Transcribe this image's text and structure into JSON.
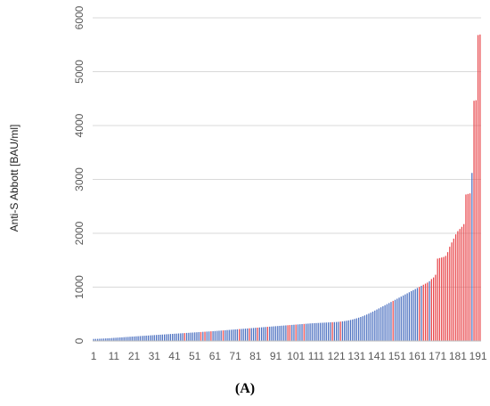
{
  "chart_data": {
    "type": "bar",
    "title": "",
    "xlabel": "",
    "ylabel": "Anti-S Abbott [BAU/ml]",
    "ylim": [
      0,
      6000
    ],
    "yticks": [
      0,
      1000,
      2000,
      3000,
      4000,
      5000,
      6000
    ],
    "xtick_labels": [
      "1",
      "11",
      "21",
      "31",
      "41",
      "51",
      "61",
      "71",
      "81",
      "91",
      "101",
      "111",
      "121",
      "131",
      "141",
      "151",
      "161",
      "171",
      "181",
      "191"
    ],
    "n_bars": 192,
    "grid": true,
    "legend": "none",
    "series_colors": {
      "blue": "#4a6fc0",
      "red": "#e8454a"
    },
    "bars": [
      [
        1,
        38,
        "b"
      ],
      [
        2,
        39,
        "b"
      ],
      [
        3,
        40,
        "b"
      ],
      [
        4,
        42,
        "b"
      ],
      [
        5,
        44,
        "b"
      ],
      [
        6,
        46,
        "b"
      ],
      [
        7,
        48,
        "b"
      ],
      [
        8,
        50,
        "b"
      ],
      [
        9,
        52,
        "b"
      ],
      [
        10,
        55,
        "b"
      ],
      [
        11,
        58,
        "b"
      ],
      [
        12,
        60,
        "b"
      ],
      [
        13,
        63,
        "b"
      ],
      [
        14,
        66,
        "b"
      ],
      [
        15,
        68,
        "b"
      ],
      [
        16,
        71,
        "b"
      ],
      [
        17,
        74,
        "b"
      ],
      [
        18,
        76,
        "b"
      ],
      [
        19,
        79,
        "b"
      ],
      [
        20,
        82,
        "b"
      ],
      [
        21,
        84,
        "b"
      ],
      [
        22,
        87,
        "b"
      ],
      [
        23,
        89,
        "b"
      ],
      [
        24,
        92,
        "b"
      ],
      [
        25,
        95,
        "b"
      ],
      [
        26,
        97,
        "b"
      ],
      [
        27,
        100,
        "b"
      ],
      [
        28,
        102,
        "b"
      ],
      [
        29,
        105,
        "b"
      ],
      [
        30,
        107,
        "b"
      ],
      [
        31,
        110,
        "b"
      ],
      [
        32,
        112,
        "b"
      ],
      [
        33,
        115,
        "b"
      ],
      [
        34,
        117,
        "b"
      ],
      [
        35,
        120,
        "b"
      ],
      [
        36,
        122,
        "b"
      ],
      [
        37,
        125,
        "b"
      ],
      [
        38,
        127,
        "b"
      ],
      [
        39,
        130,
        "b"
      ],
      [
        40,
        132,
        "b"
      ],
      [
        41,
        135,
        "b"
      ],
      [
        42,
        137,
        "b"
      ],
      [
        43,
        140,
        "b"
      ],
      [
        44,
        142,
        "b"
      ],
      [
        45,
        145,
        "b"
      ],
      [
        46,
        147,
        "r"
      ],
      [
        47,
        150,
        "b"
      ],
      [
        48,
        152,
        "b"
      ],
      [
        49,
        155,
        "b"
      ],
      [
        50,
        157,
        "b"
      ],
      [
        51,
        160,
        "b"
      ],
      [
        52,
        162,
        "b"
      ],
      [
        53,
        165,
        "b"
      ],
      [
        54,
        167,
        "r"
      ],
      [
        55,
        170,
        "b"
      ],
      [
        56,
        172,
        "r"
      ],
      [
        57,
        175,
        "b"
      ],
      [
        58,
        177,
        "b"
      ],
      [
        59,
        180,
        "r"
      ],
      [
        60,
        182,
        "b"
      ],
      [
        61,
        185,
        "b"
      ],
      [
        62,
        188,
        "b"
      ],
      [
        63,
        191,
        "b"
      ],
      [
        64,
        194,
        "b"
      ],
      [
        65,
        197,
        "r"
      ],
      [
        66,
        200,
        "b"
      ],
      [
        67,
        203,
        "b"
      ],
      [
        68,
        206,
        "b"
      ],
      [
        69,
        209,
        "b"
      ],
      [
        70,
        212,
        "b"
      ],
      [
        71,
        215,
        "b"
      ],
      [
        72,
        218,
        "b"
      ],
      [
        73,
        221,
        "r"
      ],
      [
        74,
        224,
        "b"
      ],
      [
        75,
        227,
        "b"
      ],
      [
        76,
        230,
        "b"
      ],
      [
        77,
        233,
        "b"
      ],
      [
        78,
        236,
        "r"
      ],
      [
        79,
        239,
        "b"
      ],
      [
        80,
        242,
        "b"
      ],
      [
        81,
        245,
        "b"
      ],
      [
        82,
        248,
        "r"
      ],
      [
        83,
        251,
        "b"
      ],
      [
        84,
        254,
        "b"
      ],
      [
        85,
        257,
        "b"
      ],
      [
        86,
        260,
        "b"
      ],
      [
        87,
        263,
        "r"
      ],
      [
        88,
        266,
        "b"
      ],
      [
        89,
        269,
        "b"
      ],
      [
        90,
        272,
        "b"
      ],
      [
        91,
        275,
        "b"
      ],
      [
        92,
        278,
        "b"
      ],
      [
        93,
        281,
        "b"
      ],
      [
        94,
        284,
        "b"
      ],
      [
        95,
        287,
        "b"
      ],
      [
        96,
        290,
        "b"
      ],
      [
        97,
        293,
        "r"
      ],
      [
        98,
        296,
        "r"
      ],
      [
        99,
        299,
        "b"
      ],
      [
        100,
        302,
        "b"
      ],
      [
        101,
        305,
        "r"
      ],
      [
        102,
        308,
        "b"
      ],
      [
        103,
        311,
        "b"
      ],
      [
        104,
        314,
        "b"
      ],
      [
        105,
        317,
        "r"
      ],
      [
        106,
        320,
        "b"
      ],
      [
        107,
        323,
        "b"
      ],
      [
        108,
        326,
        "b"
      ],
      [
        109,
        329,
        "b"
      ],
      [
        110,
        331,
        "b"
      ],
      [
        111,
        333,
        "b"
      ],
      [
        112,
        335,
        "b"
      ],
      [
        113,
        337,
        "b"
      ],
      [
        114,
        339,
        "b"
      ],
      [
        115,
        341,
        "b"
      ],
      [
        116,
        343,
        "b"
      ],
      [
        117,
        345,
        "b"
      ],
      [
        118,
        347,
        "b"
      ],
      [
        119,
        349,
        "r"
      ],
      [
        120,
        351,
        "b"
      ],
      [
        121,
        353,
        "b"
      ],
      [
        122,
        356,
        "b"
      ],
      [
        123,
        360,
        "r"
      ],
      [
        124,
        365,
        "b"
      ],
      [
        125,
        370,
        "b"
      ],
      [
        126,
        376,
        "b"
      ],
      [
        127,
        383,
        "b"
      ],
      [
        128,
        391,
        "b"
      ],
      [
        129,
        400,
        "b"
      ],
      [
        130,
        410,
        "b"
      ],
      [
        131,
        421,
        "b"
      ],
      [
        132,
        433,
        "b"
      ],
      [
        133,
        446,
        "b"
      ],
      [
        134,
        460,
        "b"
      ],
      [
        135,
        475,
        "b"
      ],
      [
        136,
        491,
        "b"
      ],
      [
        137,
        508,
        "b"
      ],
      [
        138,
        526,
        "b"
      ],
      [
        139,
        545,
        "b"
      ],
      [
        140,
        565,
        "b"
      ],
      [
        141,
        585,
        "b"
      ],
      [
        142,
        605,
        "b"
      ],
      [
        143,
        625,
        "b"
      ],
      [
        144,
        645,
        "b"
      ],
      [
        145,
        665,
        "b"
      ],
      [
        146,
        685,
        "b"
      ],
      [
        147,
        705,
        "b"
      ],
      [
        148,
        725,
        "b"
      ],
      [
        149,
        745,
        "r"
      ],
      [
        150,
        765,
        "b"
      ],
      [
        151,
        785,
        "b"
      ],
      [
        152,
        805,
        "b"
      ],
      [
        153,
        825,
        "b"
      ],
      [
        154,
        845,
        "b"
      ],
      [
        155,
        865,
        "b"
      ],
      [
        156,
        885,
        "b"
      ],
      [
        157,
        905,
        "b"
      ],
      [
        158,
        925,
        "b"
      ],
      [
        159,
        945,
        "b"
      ],
      [
        160,
        965,
        "b"
      ],
      [
        161,
        985,
        "b"
      ],
      [
        162,
        1005,
        "r"
      ],
      [
        163,
        1025,
        "b"
      ],
      [
        164,
        1045,
        "r"
      ],
      [
        165,
        1065,
        "r"
      ],
      [
        166,
        1085,
        "r"
      ],
      [
        167,
        1110,
        "b"
      ],
      [
        168,
        1150,
        "r"
      ],
      [
        169,
        1180,
        "r"
      ],
      [
        170,
        1230,
        "r"
      ],
      [
        171,
        1530,
        "r"
      ],
      [
        172,
        1540,
        "r"
      ],
      [
        173,
        1550,
        "r"
      ],
      [
        174,
        1560,
        "r"
      ],
      [
        175,
        1580,
        "r"
      ],
      [
        176,
        1650,
        "r"
      ],
      [
        177,
        1750,
        "r"
      ],
      [
        178,
        1830,
        "r"
      ],
      [
        179,
        1900,
        "r"
      ],
      [
        180,
        1980,
        "r"
      ],
      [
        181,
        2040,
        "r"
      ],
      [
        182,
        2080,
        "r"
      ],
      [
        183,
        2120,
        "r"
      ],
      [
        184,
        2170,
        "r"
      ],
      [
        185,
        2720,
        "r"
      ],
      [
        186,
        2730,
        "r"
      ],
      [
        187,
        2740,
        "r"
      ],
      [
        188,
        3120,
        "b"
      ],
      [
        189,
        4460,
        "r"
      ],
      [
        190,
        4470,
        "r"
      ],
      [
        191,
        5680,
        "r"
      ],
      [
        192,
        5690,
        "r"
      ]
    ]
  },
  "caption": "(A)"
}
